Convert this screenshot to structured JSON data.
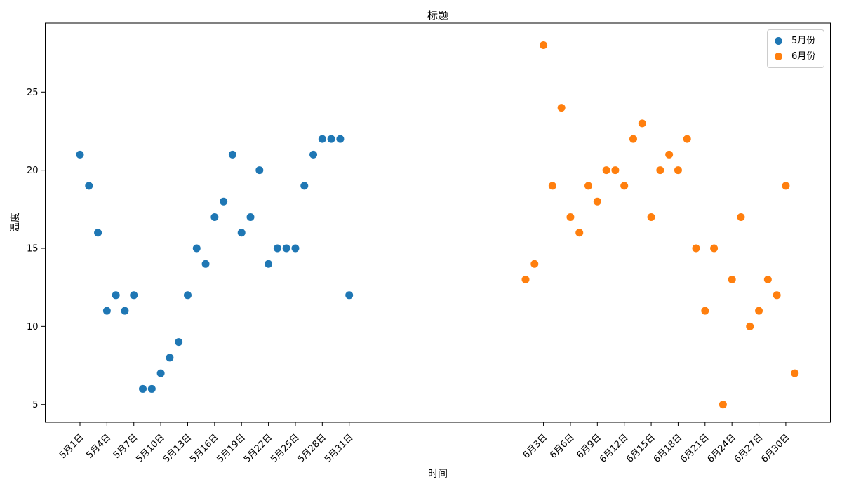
{
  "figure": {
    "background": "#ffffff"
  },
  "chart_data": {
    "type": "scatter",
    "title": "标题",
    "xlabel": "时间",
    "ylabel": "温度",
    "ylim": [
      3.9,
      29.4
    ],
    "grid": false,
    "y_ticks": [
      5,
      10,
      15,
      20,
      25
    ],
    "x_ticks": [
      {
        "m": 0,
        "day": 1,
        "label": "5月1日"
      },
      {
        "m": 0,
        "day": 4,
        "label": "5月4日"
      },
      {
        "m": 0,
        "day": 7,
        "label": "5月7日"
      },
      {
        "m": 0,
        "day": 10,
        "label": "5月10日"
      },
      {
        "m": 0,
        "day": 13,
        "label": "5月13日"
      },
      {
        "m": 0,
        "day": 16,
        "label": "5月16日"
      },
      {
        "m": 0,
        "day": 19,
        "label": "5月19日"
      },
      {
        "m": 0,
        "day": 22,
        "label": "5月22日"
      },
      {
        "m": 0,
        "day": 25,
        "label": "5月25日"
      },
      {
        "m": 0,
        "day": 28,
        "label": "5月28日"
      },
      {
        "m": 0,
        "day": 31,
        "label": "5月31日"
      },
      {
        "m": 1,
        "day": 3,
        "label": "6月3日"
      },
      {
        "m": 1,
        "day": 6,
        "label": "6月6日"
      },
      {
        "m": 1,
        "day": 9,
        "label": "6月9日"
      },
      {
        "m": 1,
        "day": 12,
        "label": "6月12日"
      },
      {
        "m": 1,
        "day": 15,
        "label": "6月15日"
      },
      {
        "m": 1,
        "day": 18,
        "label": "6月18日"
      },
      {
        "m": 1,
        "day": 21,
        "label": "6月21日"
      },
      {
        "m": 1,
        "day": 24,
        "label": "6月24日"
      },
      {
        "m": 1,
        "day": 27,
        "label": "6月27日"
      },
      {
        "m": 1,
        "day": 30,
        "label": "6月30日"
      }
    ],
    "series": [
      {
        "name": "5月份",
        "color": "#1f77b4",
        "days": [
          1,
          2,
          3,
          4,
          5,
          6,
          7,
          8,
          9,
          10,
          11,
          12,
          13,
          14,
          15,
          16,
          17,
          18,
          19,
          20,
          21,
          22,
          23,
          24,
          25,
          26,
          27,
          28,
          29,
          30,
          31
        ],
        "values": [
          21,
          19,
          16,
          11,
          12,
          11,
          12,
          6,
          6,
          7,
          8,
          9,
          12,
          15,
          14,
          17,
          18,
          21,
          16,
          17,
          20,
          14,
          15,
          15,
          15,
          19,
          21,
          22,
          22,
          22,
          12
        ]
      },
      {
        "name": "6月份",
        "color": "#ff7f0e",
        "days": [
          1,
          2,
          3,
          4,
          5,
          6,
          7,
          8,
          9,
          10,
          11,
          12,
          13,
          14,
          15,
          16,
          17,
          18,
          19,
          20,
          21,
          22,
          23,
          24,
          25,
          26,
          27,
          28,
          29,
          30,
          31
        ],
        "values": [
          13,
          14,
          28,
          19,
          24,
          17,
          16,
          19,
          18,
          20,
          20,
          19,
          22,
          23,
          17,
          20,
          21,
          20,
          22,
          15,
          11,
          15,
          5,
          13,
          17,
          10,
          11,
          13,
          12,
          19,
          7
        ]
      }
    ],
    "legend": {
      "position": "upper right"
    }
  }
}
